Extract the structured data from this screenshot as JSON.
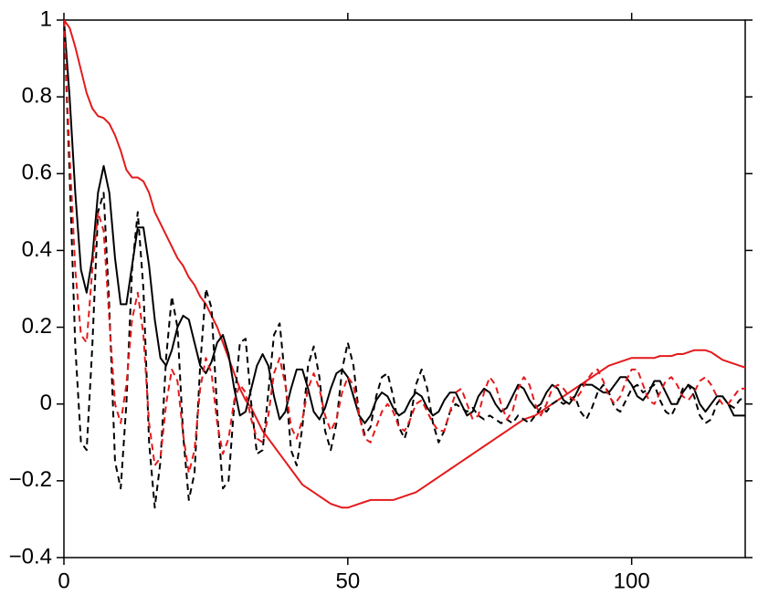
{
  "chart_data": {
    "type": "line",
    "x": [
      0,
      1,
      2,
      3,
      4,
      5,
      6,
      7,
      8,
      9,
      10,
      11,
      12,
      13,
      14,
      15,
      16,
      17,
      18,
      19,
      20,
      21,
      22,
      23,
      24,
      25,
      26,
      27,
      28,
      29,
      30,
      31,
      32,
      33,
      34,
      35,
      36,
      37,
      38,
      39,
      40,
      41,
      42,
      43,
      44,
      45,
      46,
      47,
      48,
      49,
      50,
      51,
      52,
      53,
      54,
      55,
      56,
      57,
      58,
      59,
      60,
      61,
      62,
      63,
      64,
      65,
      66,
      67,
      68,
      69,
      70,
      71,
      72,
      73,
      74,
      75,
      76,
      77,
      78,
      79,
      80,
      81,
      82,
      83,
      84,
      85,
      86,
      87,
      88,
      89,
      90,
      91,
      92,
      93,
      94,
      95,
      96,
      97,
      98,
      99,
      100,
      101,
      102,
      103,
      104,
      105,
      106,
      107,
      108,
      109,
      110,
      111,
      112,
      113,
      114,
      115,
      116,
      117,
      118,
      119,
      120
    ],
    "series": [
      {
        "color": "#e41a1c",
        "dashed": false,
        "values": [
          1.0,
          0.98,
          0.93,
          0.87,
          0.81,
          0.77,
          0.75,
          0.745,
          0.73,
          0.7,
          0.66,
          0.61,
          0.59,
          0.59,
          0.58,
          0.55,
          0.5,
          0.47,
          0.44,
          0.41,
          0.38,
          0.36,
          0.33,
          0.31,
          0.28,
          0.26,
          0.23,
          0.2,
          0.16,
          0.12,
          0.08,
          0.04,
          0.01,
          -0.01,
          -0.04,
          -0.07,
          -0.09,
          -0.11,
          -0.13,
          -0.15,
          -0.17,
          -0.19,
          -0.21,
          -0.22,
          -0.23,
          -0.24,
          -0.25,
          -0.26,
          -0.265,
          -0.27,
          -0.27,
          -0.265,
          -0.26,
          -0.255,
          -0.25,
          -0.25,
          -0.25,
          -0.25,
          -0.25,
          -0.245,
          -0.24,
          -0.235,
          -0.23,
          -0.22,
          -0.21,
          -0.2,
          -0.19,
          -0.18,
          -0.17,
          -0.16,
          -0.15,
          -0.14,
          -0.13,
          -0.12,
          -0.11,
          -0.1,
          -0.09,
          -0.08,
          -0.07,
          -0.06,
          -0.05,
          -0.04,
          -0.035,
          -0.03,
          -0.02,
          -0.01,
          0.0,
          0.01,
          0.02,
          0.03,
          0.04,
          0.05,
          0.06,
          0.07,
          0.08,
          0.09,
          0.1,
          0.105,
          0.11,
          0.115,
          0.12,
          0.12,
          0.12,
          0.12,
          0.12,
          0.125,
          0.125,
          0.125,
          0.13,
          0.13,
          0.135,
          0.14,
          0.14,
          0.14,
          0.135,
          0.125,
          0.115,
          0.11,
          0.105,
          0.1,
          0.095
        ]
      },
      {
        "color": "#000000",
        "dashed": false,
        "values": [
          1.0,
          0.8,
          0.55,
          0.35,
          0.29,
          0.38,
          0.55,
          0.62,
          0.55,
          0.38,
          0.26,
          0.26,
          0.36,
          0.46,
          0.46,
          0.36,
          0.22,
          0.12,
          0.1,
          0.14,
          0.2,
          0.23,
          0.22,
          0.16,
          0.1,
          0.08,
          0.11,
          0.16,
          0.18,
          0.13,
          0.04,
          -0.03,
          -0.02,
          0.04,
          0.1,
          0.13,
          0.1,
          0.02,
          -0.04,
          -0.02,
          0.04,
          0.09,
          0.09,
          0.04,
          -0.02,
          -0.04,
          -0.01,
          0.04,
          0.08,
          0.09,
          0.07,
          0.02,
          -0.03,
          -0.05,
          -0.03,
          0.01,
          0.03,
          0.02,
          -0.01,
          -0.03,
          -0.02,
          0.01,
          0.03,
          0.02,
          -0.01,
          -0.03,
          -0.02,
          0.01,
          0.03,
          0.03,
          0.0,
          -0.03,
          -0.02,
          0.02,
          0.04,
          0.03,
          0.0,
          -0.02,
          -0.01,
          0.02,
          0.05,
          0.04,
          0.01,
          -0.01,
          0.0,
          0.03,
          0.05,
          0.04,
          0.01,
          0.0,
          0.02,
          0.05,
          0.05,
          0.05,
          0.04,
          0.03,
          0.03,
          0.05,
          0.07,
          0.07,
          0.05,
          0.02,
          0.01,
          0.03,
          0.06,
          0.06,
          0.03,
          0.0,
          0.0,
          0.03,
          0.05,
          0.04,
          0.0,
          -0.02,
          0.0,
          0.02,
          0.02,
          0.0,
          -0.03,
          -0.03,
          -0.03
        ]
      },
      {
        "color": "#000000",
        "dashed": true,
        "values": [
          1.0,
          0.6,
          0.15,
          -0.1,
          -0.12,
          0.15,
          0.5,
          0.55,
          0.25,
          -0.15,
          -0.22,
          0.0,
          0.35,
          0.5,
          0.3,
          -0.1,
          -0.27,
          -0.15,
          0.12,
          0.28,
          0.2,
          -0.08,
          -0.25,
          -0.18,
          0.1,
          0.3,
          0.25,
          -0.02,
          -0.22,
          -0.2,
          0.0,
          0.16,
          0.17,
          0.0,
          -0.13,
          -0.12,
          0.03,
          0.18,
          0.21,
          0.06,
          -0.12,
          -0.16,
          -0.06,
          0.1,
          0.15,
          0.07,
          -0.07,
          -0.12,
          -0.05,
          0.09,
          0.16,
          0.1,
          -0.03,
          -0.08,
          -0.06,
          0.02,
          0.07,
          0.08,
          0.02,
          -0.06,
          -0.09,
          -0.04,
          0.05,
          0.09,
          0.04,
          -0.05,
          -0.1,
          -0.07,
          -0.02,
          0.0,
          -0.01,
          -0.02,
          -0.01,
          -0.03,
          -0.04,
          -0.03,
          -0.04,
          -0.05,
          -0.04,
          -0.05,
          -0.03,
          -0.04,
          -0.05,
          -0.03,
          -0.01,
          -0.02,
          0.0,
          0.01,
          0.0,
          0.01,
          0.02,
          -0.02,
          -0.04,
          -0.01,
          0.03,
          0.05,
          0.03,
          -0.01,
          -0.02,
          0.01,
          0.04,
          0.05,
          0.03,
          0.04,
          0.05,
          0.01,
          -0.02,
          -0.03,
          0.0,
          0.04,
          0.05,
          0.02,
          -0.03,
          -0.05,
          -0.04,
          0.0,
          0.02,
          0.0,
          -0.01,
          0.01,
          0.02
        ]
      },
      {
        "color": "#e41a1c",
        "dashed": true,
        "values": [
          1.0,
          0.65,
          0.35,
          0.18,
          0.16,
          0.35,
          0.5,
          0.45,
          0.22,
          0.0,
          -0.05,
          0.05,
          0.22,
          0.29,
          0.18,
          -0.05,
          -0.16,
          -0.14,
          0.0,
          0.09,
          0.06,
          -0.08,
          -0.18,
          -0.12,
          0.04,
          0.12,
          0.08,
          -0.05,
          -0.13,
          -0.09,
          0.01,
          0.05,
          0.03,
          -0.04,
          -0.09,
          -0.1,
          -0.03,
          0.08,
          0.12,
          0.05,
          -0.06,
          -0.09,
          -0.04,
          0.04,
          0.08,
          0.04,
          -0.03,
          -0.07,
          -0.04,
          0.03,
          0.07,
          0.05,
          -0.03,
          -0.09,
          -0.1,
          -0.06,
          -0.02,
          0.0,
          -0.02,
          -0.06,
          -0.07,
          -0.04,
          0.0,
          0.01,
          -0.02,
          -0.05,
          -0.07,
          -0.07,
          -0.02,
          0.03,
          0.04,
          0.0,
          -0.04,
          -0.03,
          0.03,
          0.07,
          0.05,
          0.0,
          -0.04,
          -0.02,
          0.04,
          0.07,
          0.05,
          0.0,
          -0.03,
          0.0,
          0.04,
          0.05,
          0.04,
          0.02,
          0.01,
          0.03,
          0.06,
          0.08,
          0.09,
          0.06,
          0.02,
          0.0,
          0.02,
          0.06,
          0.09,
          0.09,
          0.05,
          0.01,
          0.0,
          0.03,
          0.06,
          0.07,
          0.05,
          0.02,
          0.01,
          0.03,
          0.06,
          0.07,
          0.05,
          0.02,
          0.0,
          0.0,
          0.02,
          0.04,
          0.04
        ]
      }
    ],
    "xlim": [
      0,
      120
    ],
    "xticks": [
      0,
      50,
      100
    ],
    "ylim": [
      -0.4,
      1
    ],
    "yticks": [
      {
        "value": -0.4,
        "label": "−0.4"
      },
      {
        "value": -0.2,
        "label": "−0.2"
      },
      0,
      0.2,
      0.4,
      0.6,
      0.8,
      1
    ],
    "grid": false
  }
}
